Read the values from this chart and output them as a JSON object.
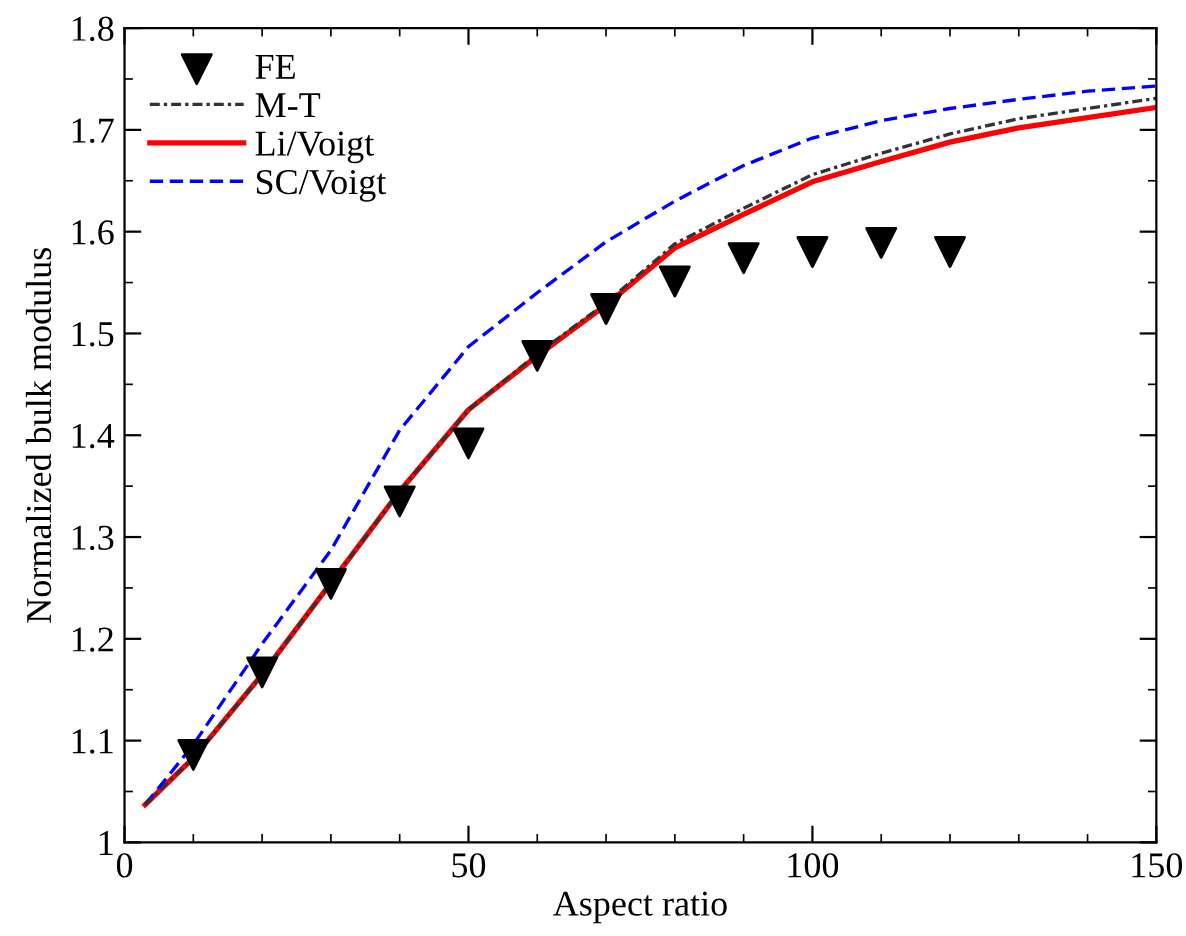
{
  "chart_data": {
    "type": "line",
    "xlabel": "Aspect ratio",
    "ylabel": "Normalized bulk modulus",
    "xlim": [
      0,
      150
    ],
    "ylim": [
      1,
      1.8
    ],
    "xticks": [
      0,
      50,
      100,
      150
    ],
    "yticks": [
      1,
      1.1,
      1.2,
      1.3,
      1.4,
      1.5,
      1.6,
      1.7,
      1.8
    ],
    "grid": false,
    "legend": "top left",
    "series": [
      {
        "name": "FE",
        "type": "scatter",
        "marker": "triangle",
        "color": "#000000",
        "x": [
          10,
          20,
          30,
          40,
          50,
          60,
          70,
          80,
          90,
          100,
          110,
          120
        ],
        "values": [
          1.086,
          1.167,
          1.254,
          1.335,
          1.392,
          1.478,
          1.524,
          1.551,
          1.574,
          1.58,
          1.589,
          1.58
        ]
      },
      {
        "name": "M-T",
        "line_style": "dashdot",
        "color": "#333333",
        "x": [
          3,
          10,
          20,
          30,
          40,
          50,
          60,
          70,
          80,
          90,
          100,
          110,
          120,
          130,
          140,
          150
        ],
        "values": [
          1.037,
          1.083,
          1.165,
          1.255,
          1.345,
          1.425,
          1.48,
          1.53,
          1.588,
          1.623,
          1.656,
          1.677,
          1.696,
          1.711,
          1.721,
          1.731
        ]
      },
      {
        "name": "Li/Voigt",
        "line_style": "solid",
        "color": "#ff0000",
        "x": [
          3,
          10,
          20,
          30,
          40,
          50,
          60,
          70,
          80,
          90,
          100,
          110,
          120,
          130,
          140,
          150
        ],
        "values": [
          1.037,
          1.083,
          1.165,
          1.255,
          1.345,
          1.425,
          1.478,
          1.528,
          1.584,
          1.617,
          1.649,
          1.669,
          1.688,
          1.702,
          1.712,
          1.722
        ]
      },
      {
        "name": "SC/Voigt",
        "line_style": "dashed",
        "color": "#0000ff",
        "x": [
          3,
          10,
          20,
          30,
          40,
          50,
          60,
          70,
          80,
          90,
          100,
          110,
          120,
          130,
          140,
          150
        ],
        "values": [
          1.037,
          1.096,
          1.195,
          1.287,
          1.405,
          1.487,
          1.54,
          1.59,
          1.63,
          1.665,
          1.692,
          1.709,
          1.721,
          1.73,
          1.738,
          1.743
        ]
      }
    ]
  }
}
